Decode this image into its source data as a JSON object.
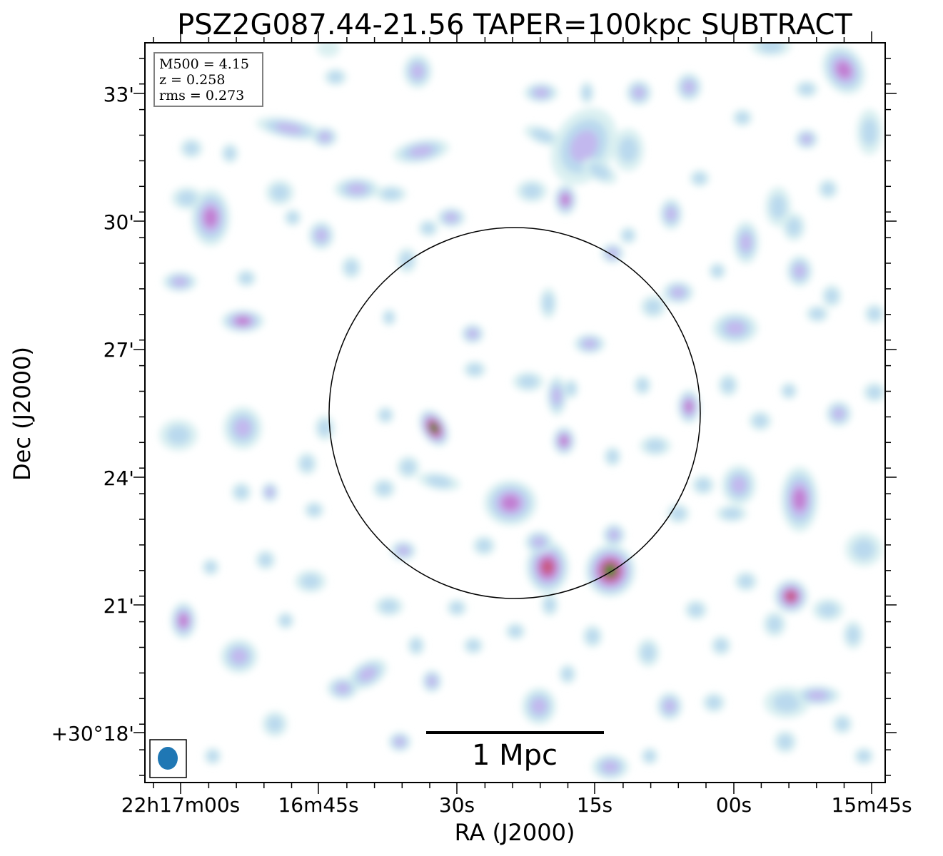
{
  "chart_data": {
    "type": "heatmap",
    "title": "PSZ2G087.44-21.56 TAPER=100kpc SUBTRACT",
    "xlabel": "RA (J2000)",
    "ylabel": "Dec (J2000)",
    "x_ticks": [
      "22h17m00s",
      "16m45s",
      "30s",
      "15s",
      "00s",
      "15m45s"
    ],
    "y_ticks": [
      "+30°18'",
      "21'",
      "24'",
      "27'",
      "30'",
      "33'"
    ],
    "info_box": [
      "M500 = 4.15",
      "z = 0.258",
      "rms = 0.273"
    ],
    "scale_bar_label": "1 Mpc",
    "colormap": [
      "#d6eef0",
      "#b8d8ee",
      "#c2b6ee",
      "#c27ad0",
      "#c8587a",
      "#3d8a2e"
    ],
    "beam_color": "#1f77b4",
    "circle_color": "#000000"
  }
}
